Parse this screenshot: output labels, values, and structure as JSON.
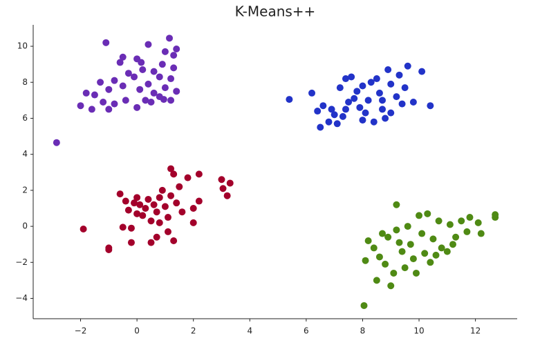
{
  "chart_data": {
    "type": "scatter",
    "title": "K-Means++",
    "xlim": [
      -3.68,
      13.48
    ],
    "ylim": [
      -5.13,
      11.19
    ],
    "xticks": [
      {
        "value": -2,
        "label": "−2"
      },
      0,
      2,
      4,
      6,
      8,
      10,
      12
    ],
    "yticks": [
      {
        "value": -4,
        "label": "−4"
      },
      {
        "value": -2,
        "label": "−2"
      },
      0,
      2,
      4,
      6,
      8,
      10
    ],
    "grid": false,
    "series": [
      {
        "color": "#6a2db5",
        "x": [
          -2.85,
          -1.1,
          0.4,
          1.15,
          1.4,
          1.0,
          1.3,
          -0.5,
          0.0,
          0.15,
          -0.6,
          0.9,
          0.2,
          -0.3,
          0.6,
          0.8,
          1.2,
          -0.1,
          -0.8,
          -1.3,
          0.4,
          -0.5,
          1.0,
          1.4,
          -1.0,
          -1.8,
          -1.5,
          0.1,
          0.6,
          -0.4,
          0.3,
          0.8,
          1.2,
          -1.2,
          -0.8,
          -2.0,
          -1.6,
          0.0,
          0.5,
          -1.0,
          0.95,
          1.3
        ],
        "values": [
          4.65,
          10.2,
          10.1,
          10.45,
          9.85,
          9.7,
          9.5,
          9.4,
          9.3,
          9.1,
          9.1,
          9.0,
          8.7,
          8.5,
          8.6,
          8.3,
          8.2,
          8.3,
          8.1,
          8.0,
          7.9,
          7.8,
          7.7,
          7.5,
          7.6,
          7.4,
          7.3,
          7.6,
          7.4,
          7.0,
          7.0,
          7.2,
          7.0,
          6.9,
          6.8,
          6.7,
          6.5,
          6.6,
          6.9,
          6.5,
          7.05,
          8.8
        ]
      },
      {
        "color": "#2233c8",
        "x": [
          5.4,
          6.2,
          6.5,
          6.4,
          6.8,
          7.0,
          7.2,
          7.4,
          7.6,
          7.5,
          7.3,
          7.8,
          7.9,
          8.0,
          8.2,
          8.3,
          8.5,
          8.6,
          8.7,
          8.8,
          8.9,
          9.0,
          9.2,
          9.3,
          9.4,
          9.6,
          9.8,
          10.1,
          10.4,
          7.1,
          6.9,
          8.1,
          8.4,
          9.0,
          7.7,
          8.0,
          6.6,
          9.5,
          8.7,
          7.4
        ],
        "values": [
          7.05,
          7.4,
          5.5,
          6.4,
          5.8,
          6.2,
          7.7,
          8.2,
          8.3,
          6.9,
          6.1,
          7.5,
          6.6,
          5.9,
          7.0,
          8.0,
          8.2,
          7.4,
          6.5,
          6.0,
          8.7,
          7.9,
          7.2,
          8.4,
          6.8,
          8.9,
          6.9,
          8.6,
          6.7,
          5.7,
          6.5,
          6.3,
          5.8,
          6.3,
          7.1,
          7.8,
          6.7,
          7.7,
          7.0,
          6.5
        ]
      },
      {
        "color": "#a3002b",
        "x": [
          -1.9,
          -1.0,
          -1.0,
          -0.6,
          -0.4,
          -0.3,
          -0.5,
          -0.2,
          -0.2,
          0.0,
          0.1,
          0.2,
          0.3,
          0.4,
          0.5,
          0.5,
          0.6,
          0.7,
          0.7,
          0.8,
          0.9,
          1.0,
          1.1,
          1.1,
          1.2,
          1.2,
          1.3,
          1.3,
          1.4,
          1.5,
          1.6,
          1.8,
          2.0,
          2.0,
          2.2,
          2.2,
          3.0,
          3.05,
          3.2,
          3.3,
          0.0,
          0.8,
          -0.1
        ],
        "values": [
          -0.15,
          -1.2,
          -1.3,
          1.8,
          1.4,
          0.9,
          -0.05,
          -0.1,
          -0.9,
          1.6,
          1.2,
          0.6,
          1.0,
          1.5,
          0.3,
          -0.9,
          1.2,
          0.8,
          -0.6,
          1.6,
          2.0,
          1.1,
          0.5,
          -0.3,
          1.7,
          3.2,
          2.9,
          -0.8,
          1.3,
          2.2,
          0.8,
          2.7,
          1.0,
          0.2,
          2.9,
          1.4,
          2.6,
          2.1,
          1.7,
          2.4,
          0.7,
          0.2,
          1.3
        ]
      },
      {
        "color": "#4f8a14",
        "x": [
          8.05,
          8.1,
          8.2,
          8.4,
          8.5,
          8.6,
          8.8,
          8.9,
          9.0,
          9.1,
          9.2,
          9.2,
          9.4,
          9.5,
          9.6,
          9.7,
          9.8,
          10.0,
          10.1,
          10.2,
          10.3,
          10.4,
          10.5,
          10.7,
          10.8,
          11.0,
          11.1,
          11.3,
          11.5,
          11.7,
          11.8,
          12.1,
          12.2,
          12.7,
          12.7,
          9.3,
          9.9,
          10.6,
          11.2,
          8.7
        ],
        "values": [
          -4.4,
          -1.9,
          -0.8,
          -1.2,
          -3.0,
          -1.7,
          -2.1,
          -0.6,
          -3.3,
          -2.6,
          1.2,
          -0.2,
          -1.4,
          -2.3,
          0.0,
          -1.0,
          -1.8,
          0.6,
          -0.4,
          -1.5,
          0.7,
          -2.0,
          -0.7,
          0.3,
          -1.2,
          -1.4,
          0.1,
          -0.6,
          0.3,
          -0.3,
          0.5,
          0.2,
          -0.4,
          0.5,
          0.65,
          -0.9,
          -2.6,
          -1.6,
          -1.0,
          -0.4
        ]
      }
    ]
  }
}
